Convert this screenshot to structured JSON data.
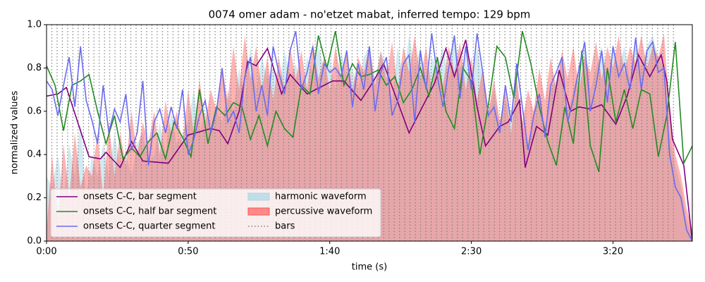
{
  "chart_data": {
    "type": "line",
    "title": "0074 omer adam - no'etzet mabat, inferred tempo: 129 bpm",
    "xlabel": "time (s)",
    "ylabel": "normalized values",
    "xlim": [
      0,
      228
    ],
    "ylim": [
      0,
      1
    ],
    "xticks": [
      {
        "value": 0,
        "label": "0:00"
      },
      {
        "value": 50,
        "label": "0:50"
      },
      {
        "value": 100,
        "label": "1:40"
      },
      {
        "value": 150,
        "label": "2:30"
      },
      {
        "value": 200,
        "label": "3:20"
      }
    ],
    "yticks": [
      {
        "value": 0,
        "label": "0.0"
      },
      0.2,
      0.4,
      0.6,
      0.8,
      {
        "value": 1,
        "label": "1.0"
      }
    ],
    "legend": "lower left",
    "x": [
      0,
      2,
      4,
      6,
      8,
      10,
      12,
      14,
      16,
      18,
      20,
      22,
      24,
      26,
      28,
      30,
      32,
      34,
      36,
      38,
      40,
      42,
      44,
      46,
      48,
      50,
      52,
      54,
      56,
      58,
      60,
      62,
      64,
      66,
      68,
      70,
      72,
      74,
      76,
      78,
      80,
      82,
      84,
      86,
      88,
      90,
      92,
      94,
      96,
      98,
      100,
      102,
      104,
      106,
      108,
      110,
      112,
      114,
      116,
      118,
      120,
      122,
      124,
      126,
      128,
      130,
      132,
      134,
      136,
      138,
      140,
      142,
      144,
      146,
      148,
      150,
      152,
      154,
      156,
      158,
      160,
      162,
      164,
      166,
      168,
      170,
      172,
      174,
      176,
      178,
      180,
      182,
      184,
      186,
      188,
      190,
      192,
      194,
      196,
      198,
      200,
      202,
      204,
      206,
      208,
      210,
      212,
      214,
      216,
      218,
      220,
      222,
      224,
      226,
      228
    ],
    "series": [
      {
        "name": "harmonic waveform",
        "kind": "area",
        "color": "#add8e6",
        "alpha": 0.55,
        "values": [
          0.3,
          0.25,
          0.4,
          0.2,
          0.45,
          0.3,
          0.55,
          0.2,
          0.4,
          0.3,
          0.45,
          0.3,
          0.5,
          0.35,
          0.4,
          0.3,
          0.45,
          0.5,
          0.35,
          0.4,
          0.55,
          0.4,
          0.6,
          0.45,
          0.5,
          0.55,
          0.7,
          0.5,
          0.6,
          0.5,
          0.6,
          0.55,
          0.7,
          0.6,
          0.8,
          0.65,
          0.9,
          0.7,
          0.85,
          0.75,
          0.8,
          0.7,
          0.88,
          0.75,
          0.82,
          0.7,
          0.85,
          0.78,
          0.9,
          0.8,
          0.85,
          0.7,
          0.88,
          0.75,
          0.8,
          0.7,
          0.85,
          0.9,
          0.75,
          0.88,
          0.8,
          0.65,
          0.9,
          0.75,
          0.95,
          0.8,
          0.9,
          0.7,
          0.85,
          0.8,
          0.9,
          0.75,
          0.95,
          0.8,
          0.85,
          0.7,
          0.9,
          0.75,
          0.6,
          0.7,
          0.55,
          0.65,
          0.6,
          0.75,
          0.55,
          0.45,
          0.6,
          0.65,
          0.5,
          0.7,
          0.75,
          0.85,
          0.6,
          0.7,
          0.8,
          0.9,
          0.7,
          0.8,
          0.9,
          0.75,
          0.88,
          0.8,
          0.9,
          0.75,
          0.92,
          0.8,
          0.9,
          0.95,
          0.85,
          0.8,
          0.5,
          0.35,
          0.25,
          0.1,
          0.02
        ]
      },
      {
        "name": "percussive waveform",
        "kind": "area",
        "color": "#ff5555",
        "alpha": 0.45,
        "values": [
          0.05,
          0.4,
          0.1,
          0.45,
          0.2,
          0.5,
          0.25,
          0.35,
          0.3,
          0.5,
          0.2,
          0.55,
          0.3,
          0.5,
          0.35,
          0.6,
          0.4,
          0.55,
          0.45,
          0.6,
          0.4,
          0.65,
          0.5,
          0.6,
          0.45,
          0.7,
          0.5,
          0.75,
          0.55,
          0.7,
          0.6,
          0.8,
          0.65,
          0.9,
          0.7,
          0.95,
          0.75,
          0.9,
          0.7,
          0.85,
          0.65,
          0.85,
          0.7,
          0.9,
          0.75,
          0.88,
          0.7,
          0.92,
          0.75,
          0.85,
          0.7,
          0.9,
          0.75,
          0.88,
          0.7,
          0.85,
          0.78,
          0.9,
          0.72,
          0.88,
          0.75,
          0.92,
          0.7,
          0.9,
          0.78,
          0.95,
          0.75,
          0.9,
          0.7,
          0.85,
          0.72,
          0.9,
          0.78,
          0.92,
          0.7,
          0.85,
          0.65,
          0.8,
          0.6,
          0.75,
          0.55,
          0.7,
          0.5,
          0.75,
          0.55,
          0.7,
          0.6,
          0.8,
          0.65,
          0.85,
          0.7,
          0.88,
          0.75,
          0.9,
          0.7,
          0.85,
          0.78,
          0.92,
          0.75,
          0.9,
          0.8,
          0.95,
          0.78,
          0.9,
          0.82,
          0.95,
          0.8,
          0.9,
          0.85,
          0.96,
          0.6,
          0.4,
          0.3,
          0.15,
          0.05
        ]
      },
      {
        "name": "onsets C-C, bar segment",
        "kind": "line",
        "color": "#800080",
        "x": [
          0,
          4,
          7,
          15,
          19,
          21,
          26,
          30,
          34,
          43,
          50,
          58,
          61,
          64,
          68,
          71,
          74,
          78,
          83,
          86,
          92,
          101,
          105,
          111,
          115,
          119,
          128,
          137,
          141,
          144,
          148,
          152,
          155,
          160,
          163,
          167,
          169,
          173,
          177,
          181,
          185,
          188,
          192,
          196,
          201,
          205,
          209,
          213,
          217,
          219,
          221,
          225,
          228
        ],
        "values": [
          0.67,
          0.68,
          0.71,
          0.39,
          0.38,
          0.41,
          0.34,
          0.46,
          0.37,
          0.36,
          0.49,
          0.52,
          0.51,
          0.45,
          0.6,
          0.83,
          0.81,
          0.89,
          0.68,
          0.77,
          0.68,
          0.74,
          0.74,
          0.65,
          0.73,
          0.82,
          0.5,
          0.73,
          0.89,
          0.76,
          0.93,
          0.62,
          0.44,
          0.53,
          0.55,
          0.65,
          0.34,
          0.53,
          0.49,
          0.79,
          0.6,
          0.62,
          0.61,
          0.63,
          0.54,
          0.67,
          0.86,
          0.76,
          0.86,
          0.74,
          0.47,
          0.35,
          0.0
        ]
      },
      {
        "name": "onsets C-C, half bar segment",
        "kind": "line",
        "color": "#228b22",
        "x": [
          0,
          3,
          6,
          9,
          12,
          15,
          18,
          21,
          24,
          27,
          30,
          33,
          36,
          39,
          42,
          45,
          48,
          51,
          54,
          57,
          60,
          63,
          66,
          69,
          72,
          75,
          78,
          81,
          84,
          87,
          90,
          93,
          96,
          99,
          102,
          105,
          108,
          111,
          114,
          117,
          120,
          123,
          126,
          129,
          132,
          135,
          138,
          141,
          144,
          147,
          150,
          153,
          156,
          159,
          162,
          165,
          168,
          171,
          174,
          177,
          180,
          183,
          186,
          189,
          192,
          195,
          198,
          201,
          204,
          207,
          210,
          213,
          216,
          219,
          222,
          225,
          228
        ],
        "values": [
          0.81,
          0.72,
          0.51,
          0.72,
          0.74,
          0.77,
          0.6,
          0.45,
          0.58,
          0.38,
          0.43,
          0.39,
          0.46,
          0.5,
          0.38,
          0.55,
          0.48,
          0.39,
          0.7,
          0.45,
          0.62,
          0.58,
          0.64,
          0.62,
          0.47,
          0.58,
          0.44,
          0.6,
          0.52,
          0.48,
          0.72,
          0.68,
          0.95,
          0.8,
          0.97,
          0.72,
          0.82,
          0.76,
          0.77,
          0.79,
          0.72,
          0.76,
          0.64,
          0.7,
          0.8,
          0.67,
          0.85,
          0.6,
          0.52,
          0.8,
          0.74,
          0.4,
          0.63,
          0.9,
          0.85,
          0.66,
          0.97,
          0.82,
          0.62,
          0.46,
          0.35,
          0.62,
          0.45,
          0.88,
          0.44,
          0.32,
          0.8,
          0.55,
          0.7,
          0.52,
          0.7,
          0.68,
          0.39,
          0.58,
          0.92,
          0.36,
          0.44
        ]
      },
      {
        "name": "onsets C-C, quarter segment",
        "kind": "line",
        "color": "#6b6bf0",
        "values": [
          0.74,
          0.7,
          0.58,
          0.72,
          0.85,
          0.62,
          0.9,
          0.65,
          0.56,
          0.45,
          0.72,
          0.5,
          0.61,
          0.55,
          0.68,
          0.42,
          0.5,
          0.74,
          0.35,
          0.55,
          0.61,
          0.5,
          0.62,
          0.52,
          0.7,
          0.4,
          0.47,
          0.58,
          0.65,
          0.5,
          0.6,
          0.8,
          0.55,
          0.6,
          0.5,
          0.76,
          0.85,
          0.6,
          0.72,
          0.58,
          0.9,
          0.78,
          0.68,
          0.88,
          0.97,
          0.7,
          0.78,
          0.9,
          0.68,
          0.82,
          0.78,
          0.8,
          0.76,
          0.88,
          0.62,
          0.82,
          0.7,
          0.9,
          0.6,
          0.78,
          0.85,
          0.58,
          0.65,
          0.82,
          0.86,
          0.55,
          0.88,
          0.7,
          0.96,
          0.76,
          0.62,
          0.8,
          0.95,
          0.66,
          0.9,
          0.7,
          0.96,
          0.78,
          0.58,
          0.62,
          0.5,
          0.72,
          0.55,
          0.82,
          0.62,
          0.42,
          0.58,
          0.68,
          0.48,
          0.72,
          0.78,
          0.85,
          0.55,
          0.66,
          0.8,
          0.92,
          0.6,
          0.72,
          0.88,
          0.64,
          0.9,
          0.76,
          0.82,
          0.7,
          0.94,
          0.7,
          0.88,
          0.92,
          0.78,
          0.8,
          0.4,
          0.25,
          0.2,
          0.05,
          0.0
        ]
      }
    ],
    "vlines": {
      "name": "bars",
      "color": "#808080",
      "values": [
        0,
        1.86,
        3.72,
        5.58,
        7.44,
        9.3,
        11.16,
        13.02,
        14.88,
        16.74,
        18.6,
        20.46,
        22.32,
        24.18,
        26.04,
        27.9,
        29.76,
        31.62,
        33.48,
        35.34,
        37.2,
        39.06,
        40.92,
        42.78,
        44.64,
        46.5,
        48.36,
        50.22,
        52.08,
        53.94,
        55.8,
        57.66,
        59.52,
        61.38,
        63.24,
        65.1,
        66.96,
        68.82,
        70.68,
        72.54,
        74.4,
        76.26,
        78.12,
        79.98,
        81.84,
        83.7,
        85.56,
        87.42,
        89.28,
        91.14,
        93,
        94.86,
        96.72,
        98.58,
        100.44,
        102.3,
        104.16,
        106.02,
        107.88,
        109.74,
        111.6,
        113.46,
        115.32,
        117.18,
        119.04,
        120.9,
        122.76,
        124.62,
        126.48,
        128.34,
        130.2,
        132.06,
        133.92,
        135.78,
        137.64,
        139.5,
        141.36,
        143.22,
        145.08,
        146.94,
        148.8,
        150.66,
        152.52,
        154.38,
        156.24,
        158.1,
        159.96,
        161.82,
        163.68,
        165.54,
        167.4,
        169.26,
        171.12,
        172.98,
        174.84,
        176.7,
        178.56,
        180.42,
        182.28,
        184.14,
        186,
        187.86,
        189.72,
        191.58,
        193.44,
        195.3,
        197.16,
        199.02,
        200.88,
        202.74,
        204.6,
        206.46,
        208.32,
        210.18,
        212.04,
        213.9,
        215.76,
        217.62,
        219.48,
        221.34
      ]
    }
  }
}
